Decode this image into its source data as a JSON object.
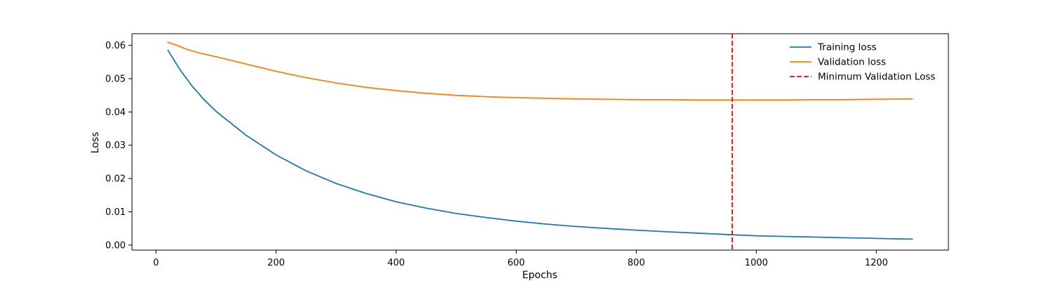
{
  "chart_data": {
    "type": "line",
    "title": "",
    "xlabel": "Epochs",
    "ylabel": "Loss",
    "xlim": [
      -40,
      1320
    ],
    "ylim": [
      -0.0015,
      0.0635
    ],
    "xticks": [
      0,
      200,
      400,
      600,
      800,
      1000,
      1200
    ],
    "xtick_labels": [
      "0",
      "200",
      "400",
      "600",
      "800",
      "1000",
      "1200"
    ],
    "yticks": [
      0.0,
      0.01,
      0.02,
      0.03,
      0.04,
      0.05,
      0.06
    ],
    "ytick_labels": [
      "0.00",
      "0.01",
      "0.02",
      "0.03",
      "0.04",
      "0.05",
      "0.06"
    ],
    "grid": false,
    "legend_position": "top-right",
    "series": [
      {
        "name": "Training loss",
        "color": "#1f77b4",
        "style": "solid",
        "x": [
          20,
          40,
          60,
          80,
          100,
          150,
          200,
          250,
          300,
          350,
          400,
          450,
          500,
          550,
          600,
          650,
          700,
          750,
          800,
          850,
          900,
          960,
          1000,
          1050,
          1100,
          1150,
          1200,
          1260
        ],
        "y": [
          0.0585,
          0.0527,
          0.0478,
          0.0437,
          0.0402,
          0.033,
          0.0271,
          0.0223,
          0.0185,
          0.0155,
          0.013,
          0.0111,
          0.0095,
          0.0083,
          0.0072,
          0.0063,
          0.0056,
          0.005,
          0.0045,
          0.004,
          0.0036,
          0.0031,
          0.0028,
          0.0026,
          0.0024,
          0.0022,
          0.002,
          0.0018
        ]
      },
      {
        "name": "Validation loss",
        "color": "#ff7f0e",
        "style": "solid",
        "x": [
          20,
          35,
          50,
          70,
          100,
          150,
          200,
          250,
          300,
          350,
          400,
          450,
          500,
          550,
          600,
          650,
          700,
          750,
          800,
          850,
          900,
          960,
          1000,
          1050,
          1100,
          1150,
          1200,
          1260
        ],
        "y": [
          0.0609,
          0.06,
          0.0589,
          0.0578,
          0.0566,
          0.0544,
          0.0522,
          0.0503,
          0.0487,
          0.0474,
          0.0464,
          0.0456,
          0.045,
          0.0446,
          0.0443,
          0.0441,
          0.0439,
          0.0438,
          0.0437,
          0.0437,
          0.0436,
          0.0436,
          0.0436,
          0.0436,
          0.0437,
          0.0437,
          0.0438,
          0.0439
        ]
      }
    ],
    "vlines": [
      {
        "name": "Minimum Validation Loss",
        "x": 960,
        "color": "#ff0000",
        "style": "dashed"
      }
    ]
  }
}
